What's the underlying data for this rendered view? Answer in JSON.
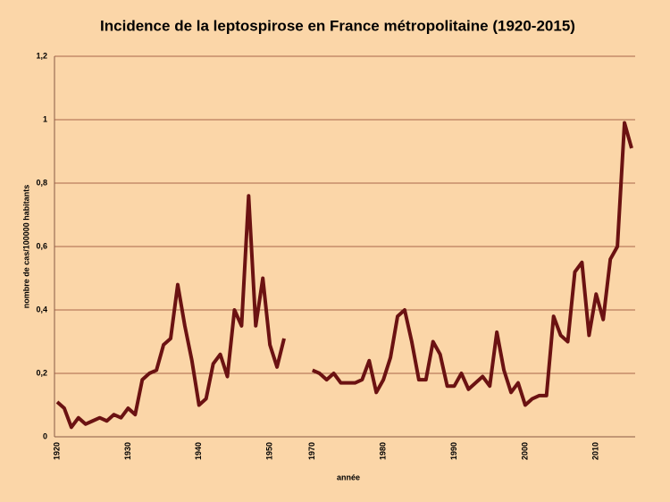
{
  "chart_data": {
    "type": "line",
    "title": "Incidence de la leptospirose en France métropolitaine (1920-2015)",
    "x_label": "année",
    "y_label": "nombre de cas/100000 habitants",
    "categories": [
      "1920",
      null,
      null,
      null,
      null,
      null,
      null,
      null,
      null,
      null,
      "1930",
      null,
      null,
      null,
      null,
      null,
      null,
      null,
      null,
      null,
      "1940",
      null,
      null,
      null,
      null,
      null,
      null,
      null,
      null,
      null,
      "1950",
      null,
      null,
      null,
      null,
      null,
      "1970",
      null,
      null,
      null,
      null,
      null,
      null,
      null,
      null,
      null,
      "1980",
      null,
      null,
      null,
      null,
      null,
      null,
      null,
      null,
      null,
      "1990",
      null,
      null,
      null,
      null,
      null,
      null,
      null,
      null,
      null,
      "2000",
      null,
      null,
      null,
      null,
      null,
      null,
      null,
      null,
      null,
      "2010",
      null,
      null,
      null,
      null,
      null
    ],
    "series": [
      {
        "name": "incidence",
        "color": "#6b1212",
        "values": [
          0.11,
          0.09,
          0.03,
          0.06,
          0.04,
          0.05,
          0.06,
          0.05,
          0.07,
          0.06,
          0.09,
          0.07,
          0.18,
          0.2,
          0.21,
          0.29,
          0.31,
          0.48,
          0.35,
          0.24,
          0.1,
          0.12,
          0.23,
          0.26,
          0.19,
          0.4,
          0.35,
          0.76,
          0.35,
          0.5,
          0.29,
          0.22,
          0.31,
          null,
          null,
          null,
          0.21,
          0.2,
          0.18,
          0.2,
          0.17,
          0.17,
          0.17,
          0.18,
          0.24,
          0.14,
          0.18,
          0.25,
          0.38,
          0.4,
          0.3,
          0.18,
          0.18,
          0.3,
          0.26,
          0.16,
          0.16,
          0.2,
          0.15,
          0.17,
          0.19,
          0.16,
          0.33,
          0.21,
          0.14,
          0.17,
          0.1,
          0.12,
          0.13,
          0.13,
          0.38,
          0.32,
          0.3,
          0.52,
          0.55,
          0.32,
          0.45,
          0.37,
          0.56,
          0.6,
          0.99,
          0.91
        ]
      }
    ],
    "ylim": [
      0,
      1.2
    ],
    "yticks": [
      0,
      {
        "value": 0.2,
        "label": "0,2"
      },
      {
        "value": 0.4,
        "label": "0,4"
      },
      {
        "value": 0.6,
        "label": "0,6"
      },
      {
        "value": 0.8,
        "label": "0,8"
      },
      1,
      {
        "value": 1.2,
        "label": "1,2"
      }
    ],
    "grid": true
  }
}
